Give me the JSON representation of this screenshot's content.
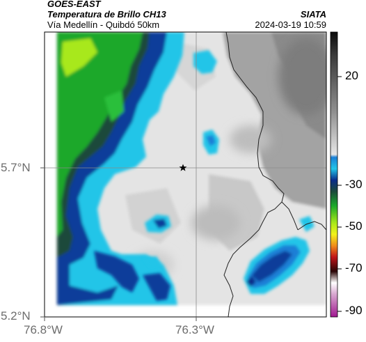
{
  "header": {
    "source": "GOES-EAST",
    "product": "Temperatura de Brillo CH13",
    "region": "Vía Medellín - Quibdó 50km",
    "institution": "SIATA",
    "datetime": "2024-03-19 10:59"
  },
  "axes": {
    "lat_labels": [
      "5.7°N",
      "5.2°N"
    ],
    "lon_labels": [
      "76.8°W",
      "76.3°W"
    ]
  },
  "colorbar": {
    "tick_labels": [
      "20",
      "-30",
      "-50",
      "-70",
      "-90"
    ],
    "colors": {
      "top_black": "#111111",
      "gray_mid": "#9a9a9a",
      "white": "#f2f2f2",
      "cyan": "#22c5e8",
      "blue": "#0a3c9a",
      "green": "#1aa82a",
      "yellow": "#f2f21a",
      "orange": "#f08c1a",
      "red": "#c0141a",
      "dark": "#3a0a0a",
      "magenta": "#c23ea8"
    }
  },
  "map": {
    "marker": "star-icon",
    "layers": [
      "brightness-temperature",
      "coastline",
      "graticule"
    ]
  }
}
